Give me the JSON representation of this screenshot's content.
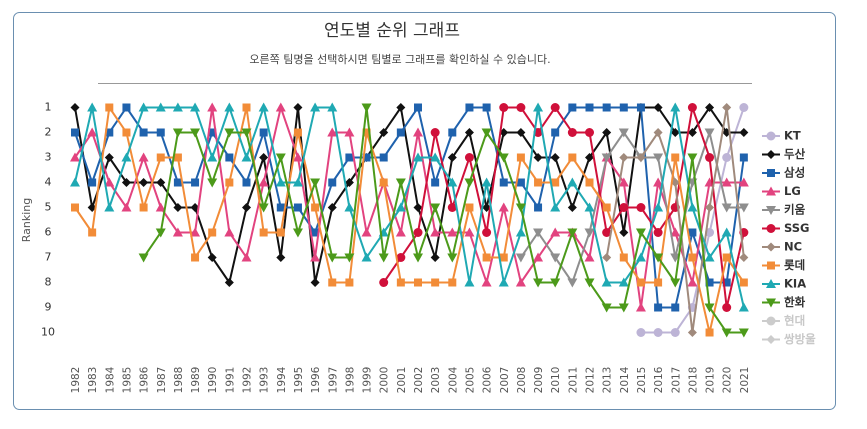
{
  "chart_data": {
    "type": "line",
    "title": "연도별 순위 그래프",
    "subtitle": "오른쪽 팀명을 선택하시면 팀별로 그래프를 확인하실 수 있습니다.",
    "y_label": "Ranking",
    "ylim": [
      10.7,
      0.3
    ],
    "yticks": [
      1,
      2,
      3,
      4,
      5,
      6,
      7,
      8,
      9,
      10
    ],
    "categories": [
      "1982",
      "1983",
      "1984",
      "1985",
      "1986",
      "1987",
      "1988",
      "1989",
      "1990",
      "1991",
      "1992",
      "1993",
      "1994",
      "1995",
      "1996",
      "1997",
      "1998",
      "1999",
      "2000",
      "2001",
      "2002",
      "2003",
      "2004",
      "2005",
      "2006",
      "2007",
      "2008",
      "2009",
      "2010",
      "2011",
      "2012",
      "2013",
      "2014",
      "2015",
      "2016",
      "2017",
      "2018",
      "2019",
      "2020",
      "2021"
    ],
    "legend": "right",
    "series": [
      {
        "name": "KT",
        "color": "#bdb4d6",
        "marker": "circle",
        "values": [
          null,
          null,
          null,
          null,
          null,
          null,
          null,
          null,
          null,
          null,
          null,
          null,
          null,
          null,
          null,
          null,
          null,
          null,
          null,
          null,
          null,
          null,
          null,
          null,
          null,
          null,
          null,
          null,
          null,
          null,
          null,
          null,
          null,
          10,
          10,
          10,
          9,
          6,
          3,
          1
        ]
      },
      {
        "name": "두산",
        "color": "#111111",
        "marker": "diamond",
        "values": [
          1,
          5,
          3,
          4,
          4,
          4,
          5,
          5,
          7,
          8,
          5,
          3,
          7,
          1,
          8,
          5,
          4,
          3,
          2,
          1,
          5,
          7,
          3,
          2,
          5,
          2,
          2,
          3,
          3,
          5,
          3,
          2,
          6,
          1,
          1,
          2,
          2,
          1,
          2,
          2
        ]
      },
      {
        "name": "삼성",
        "color": "#1f62ad",
        "marker": "square",
        "values": [
          2,
          4,
          2,
          1,
          2,
          2,
          4,
          4,
          2,
          3,
          4,
          2,
          5,
          5,
          6,
          4,
          3,
          3,
          3,
          2,
          1,
          4,
          2,
          1,
          1,
          4,
          4,
          5,
          2,
          1,
          1,
          1,
          1,
          1,
          9,
          9,
          6,
          8,
          8,
          3
        ]
      },
      {
        "name": "LG",
        "color": "#e2437f",
        "marker": "triangle",
        "values": [
          3,
          2,
          4,
          5,
          3,
          5,
          6,
          6,
          1,
          6,
          7,
          4,
          1,
          3,
          7,
          2,
          2,
          6,
          4,
          6,
          2,
          6,
          6,
          6,
          8,
          5,
          8,
          7,
          6,
          6,
          7,
          3,
          4,
          9,
          4,
          6,
          8,
          4,
          4,
          4
        ]
      },
      {
        "name": "키움",
        "color": "#8e8e8e",
        "marker": "triangle-down",
        "values": [
          null,
          null,
          null,
          null,
          null,
          null,
          null,
          null,
          null,
          null,
          null,
          null,
          null,
          null,
          null,
          null,
          null,
          null,
          null,
          null,
          null,
          null,
          null,
          null,
          null,
          null,
          7,
          6,
          7,
          8,
          6,
          3,
          2,
          3,
          3,
          7,
          4,
          2,
          5,
          5
        ]
      },
      {
        "name": "SSG",
        "color": "#d0103a",
        "marker": "circle",
        "values": [
          null,
          null,
          null,
          null,
          null,
          null,
          null,
          null,
          null,
          null,
          null,
          null,
          null,
          null,
          null,
          null,
          null,
          null,
          8,
          7,
          6,
          2,
          5,
          3,
          6,
          1,
          1,
          2,
          1,
          2,
          2,
          6,
          5,
          5,
          6,
          5,
          1,
          3,
          9,
          6
        ]
      },
      {
        "name": "NC",
        "color": "#a08a7c",
        "marker": "diamond",
        "values": [
          null,
          null,
          null,
          null,
          null,
          null,
          null,
          null,
          null,
          null,
          null,
          null,
          null,
          null,
          null,
          null,
          null,
          null,
          null,
          null,
          null,
          null,
          null,
          null,
          null,
          null,
          null,
          null,
          null,
          null,
          null,
          7,
          3,
          3,
          2,
          4,
          10,
          5,
          1,
          7
        ]
      },
      {
        "name": "롯데",
        "color": "#f28c38",
        "marker": "square",
        "values": [
          5,
          6,
          1,
          2,
          5,
          3,
          3,
          7,
          6,
          4,
          1,
          6,
          6,
          2,
          5,
          8,
          8,
          2,
          4,
          8,
          8,
          8,
          8,
          5,
          7,
          7,
          3,
          4,
          4,
          3,
          4,
          5,
          7,
          8,
          8,
          3,
          7,
          10,
          7,
          8
        ]
      },
      {
        "name": "KIA",
        "color": "#1fa9b3",
        "marker": "triangle",
        "values": [
          4,
          1,
          5,
          3,
          1,
          1,
          1,
          1,
          3,
          1,
          3,
          1,
          4,
          4,
          1,
          1,
          5,
          7,
          6,
          5,
          3,
          3,
          4,
          8,
          4,
          8,
          6,
          1,
          5,
          4,
          5,
          8,
          8,
          7,
          5,
          1,
          5,
          7,
          6,
          9
        ]
      },
      {
        "name": "한화",
        "color": "#4c9a1a",
        "marker": "triangle-down",
        "values": [
          null,
          null,
          null,
          null,
          7,
          6,
          2,
          2,
          4,
          2,
          2,
          5,
          3,
          6,
          4,
          7,
          7,
          1,
          7,
          4,
          7,
          5,
          7,
          4,
          2,
          3,
          5,
          8,
          8,
          6,
          8,
          9,
          9,
          6,
          7,
          8,
          3,
          9,
          10,
          10
        ]
      },
      {
        "name": "현대",
        "color": "#cccccc",
        "marker": "circle",
        "hidden": true,
        "values": [
          null,
          null,
          null,
          null,
          null,
          null,
          null,
          null,
          null,
          null,
          null,
          null,
          null,
          null,
          null,
          null,
          null,
          null,
          null,
          null,
          null,
          null,
          null,
          null,
          null,
          null,
          null,
          null,
          null,
          null,
          null,
          null,
          null,
          null,
          null,
          null,
          null,
          null,
          null,
          null
        ]
      },
      {
        "name": "쌍방울",
        "color": "#cccccc",
        "marker": "diamond",
        "hidden": true,
        "values": [
          null,
          null,
          null,
          null,
          null,
          null,
          null,
          null,
          null,
          null,
          null,
          null,
          null,
          null,
          null,
          null,
          null,
          null,
          null,
          null,
          null,
          null,
          null,
          null,
          null,
          null,
          null,
          null,
          null,
          null,
          null,
          null,
          null,
          null,
          null,
          null,
          null,
          null,
          null,
          null
        ]
      }
    ]
  }
}
